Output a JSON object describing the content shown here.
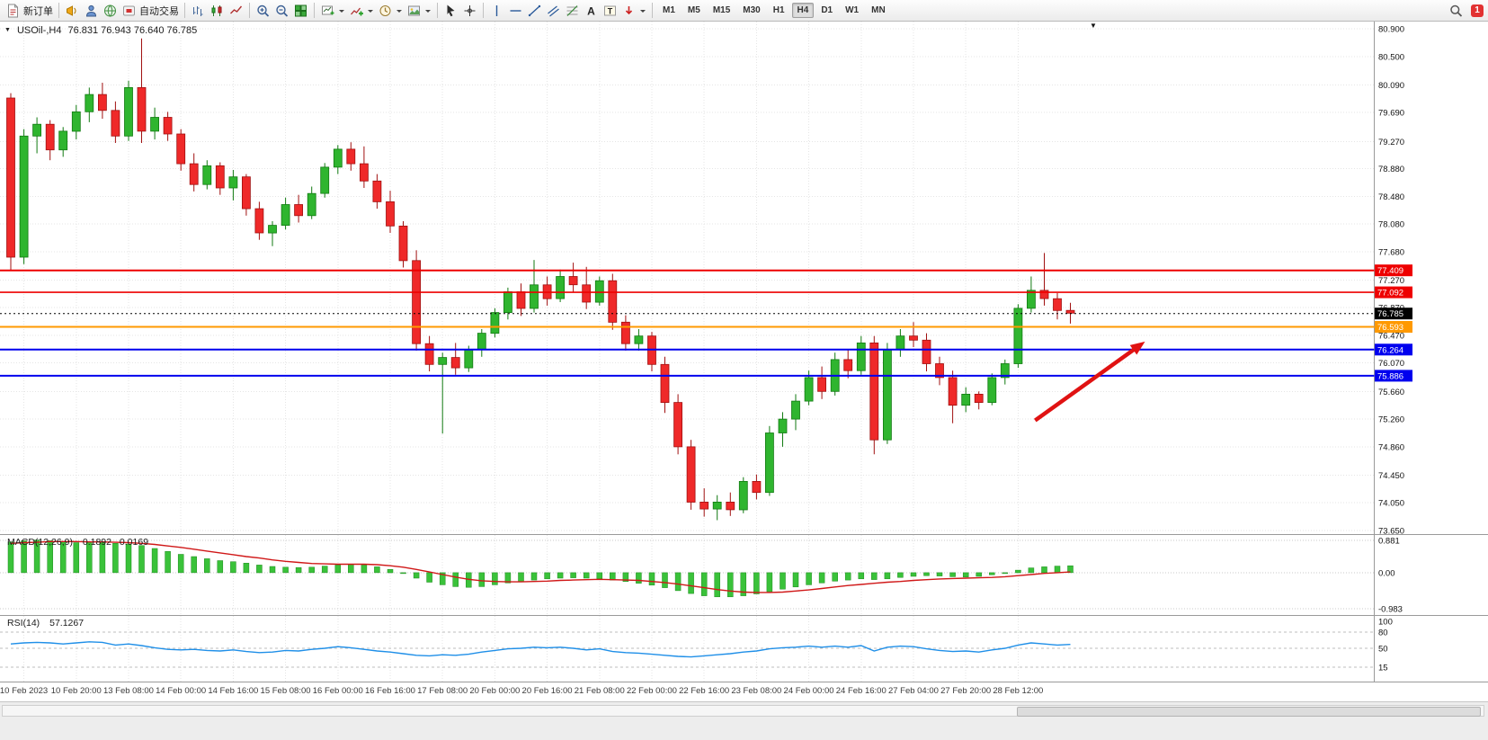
{
  "toolbar": {
    "timeframes": [
      "M1",
      "M5",
      "M15",
      "M30",
      "H1",
      "H4",
      "D1",
      "W1",
      "MN"
    ],
    "active_timeframe": "H4",
    "items": [
      {
        "t": "btn",
        "icon": "doc-new",
        "label": "新订单",
        "name": "new-order-button"
      },
      {
        "t": "sep"
      },
      {
        "t": "ico",
        "icon": "megaphone",
        "name": "alerts-button"
      },
      {
        "t": "ico",
        "icon": "person",
        "name": "accounts-button"
      },
      {
        "t": "ico",
        "icon": "globe",
        "name": "community-button"
      },
      {
        "t": "btn",
        "icon": "autotrade",
        "label": "自动交易",
        "name": "autotrading-button"
      },
      {
        "t": "sep"
      },
      {
        "t": "ico",
        "icon": "bar-chart",
        "name": "bar-chart-button"
      },
      {
        "t": "ico",
        "icon": "candle-chart",
        "name": "candlestick-chart-button"
      },
      {
        "t": "ico",
        "icon": "line-chart",
        "name": "line-chart-button"
      },
      {
        "t": "sep"
      },
      {
        "t": "ico",
        "icon": "zoom-in",
        "name": "zoom-in-button"
      },
      {
        "t": "ico",
        "icon": "zoom-out",
        "name": "zoom-out-button"
      },
      {
        "t": "ico",
        "icon": "tile-windows",
        "name": "tile-windows-button"
      },
      {
        "t": "sep"
      },
      {
        "t": "icoD",
        "icon": "new-chart",
        "name": "new-chart-button"
      },
      {
        "t": "icoD",
        "icon": "indicators",
        "name": "indicators-button"
      },
      {
        "t": "icoD",
        "icon": "periods",
        "name": "periods-button"
      },
      {
        "t": "icoD",
        "icon": "templates",
        "name": "templates-button"
      },
      {
        "t": "sep"
      },
      {
        "t": "ico",
        "icon": "cursor",
        "name": "cursor-button"
      },
      {
        "t": "ico",
        "icon": "crosshair",
        "name": "crosshair-button"
      },
      {
        "t": "sep"
      },
      {
        "t": "ico",
        "icon": "vline",
        "name": "vertical-line-button"
      },
      {
        "t": "ico",
        "icon": "hline",
        "name": "horizontal-line-button"
      },
      {
        "t": "ico",
        "icon": "trendline",
        "name": "trendline-button"
      },
      {
        "t": "ico",
        "icon": "channel",
        "name": "equidistant-channel-button"
      },
      {
        "t": "ico",
        "icon": "fibonacci",
        "name": "fibonacci-button"
      },
      {
        "t": "ico",
        "icon": "text",
        "name": "text-button"
      },
      {
        "t": "ico",
        "icon": "text-label",
        "name": "text-label-button"
      },
      {
        "t": "icoD",
        "icon": "arrows",
        "name": "arrows-button"
      },
      {
        "t": "sep"
      },
      {
        "t": "tf"
      },
      {
        "t": "spacer"
      },
      {
        "t": "ico",
        "icon": "search",
        "name": "search-button"
      },
      {
        "t": "badge",
        "label": "1",
        "name": "notification-badge"
      }
    ]
  },
  "chart_data": [
    {
      "type": "candlestick",
      "title": "USOil-,H4",
      "ohlc_text": "76.831 76.943 76.640 76.785",
      "up_color": "#2fb52f",
      "down_color": "#ef2929",
      "price_ticks": [
        "80.900",
        "80.500",
        "80.090",
        "79.690",
        "79.270",
        "78.880",
        "78.480",
        "78.080",
        "77.680",
        "77.270",
        "76.870",
        "76.470",
        "76.070",
        "75.660",
        "75.260",
        "74.860",
        "74.450",
        "74.050",
        "73.650"
      ],
      "time_labels": [
        "10 Feb 2023",
        "10 Feb 20:00",
        "13 Feb 08:00",
        "14 Feb 00:00",
        "14 Feb 16:00",
        "15 Feb 08:00",
        "16 Feb 00:00",
        "16 Feb 16:00",
        "17 Feb 08:00",
        "20 Feb 00:00",
        "20 Feb 16:00",
        "21 Feb 08:00",
        "22 Feb 00:00",
        "22 Feb 16:00",
        "23 Feb 08:00",
        "24 Feb 00:00",
        "24 Feb 16:00",
        "27 Feb 04:00",
        "27 Feb 20:00",
        "28 Feb 12:00"
      ],
      "candles": [
        [
          79.9,
          79.97,
          77.4,
          77.6
        ],
        [
          77.6,
          79.45,
          77.5,
          79.35
        ],
        [
          79.35,
          79.62,
          79.1,
          79.52
        ],
        [
          79.52,
          79.58,
          79.0,
          79.15
        ],
        [
          79.15,
          79.48,
          79.05,
          79.42
        ],
        [
          79.42,
          79.8,
          79.3,
          79.7
        ],
        [
          79.7,
          80.05,
          79.55,
          79.95
        ],
        [
          79.95,
          80.12,
          79.6,
          79.72
        ],
        [
          79.72,
          79.85,
          79.25,
          79.35
        ],
        [
          79.35,
          80.15,
          79.28,
          80.05
        ],
        [
          80.05,
          80.76,
          79.25,
          79.42
        ],
        [
          79.42,
          79.76,
          79.3,
          79.62
        ],
        [
          79.62,
          79.7,
          79.28,
          79.38
        ],
        [
          79.38,
          79.45,
          78.85,
          78.95
        ],
        [
          78.95,
          79.1,
          78.55,
          78.65
        ],
        [
          78.65,
          79.0,
          78.58,
          78.92
        ],
        [
          78.92,
          78.97,
          78.5,
          78.6
        ],
        [
          78.6,
          78.86,
          78.42,
          78.76
        ],
        [
          78.76,
          78.8,
          78.2,
          78.3
        ],
        [
          78.3,
          78.4,
          77.85,
          77.95
        ],
        [
          77.95,
          78.12,
          77.76,
          78.06
        ],
        [
          78.06,
          78.46,
          78.0,
          78.36
        ],
        [
          78.36,
          78.5,
          78.1,
          78.2
        ],
        [
          78.2,
          78.62,
          78.15,
          78.52
        ],
        [
          78.52,
          78.96,
          78.46,
          78.9
        ],
        [
          78.9,
          79.22,
          78.8,
          79.16
        ],
        [
          79.16,
          79.26,
          78.85,
          78.95
        ],
        [
          78.95,
          79.2,
          78.6,
          78.7
        ],
        [
          78.7,
          78.8,
          78.3,
          78.4
        ],
        [
          78.4,
          78.56,
          77.95,
          78.05
        ],
        [
          78.05,
          78.12,
          77.45,
          77.55
        ],
        [
          77.55,
          77.7,
          76.25,
          76.35
        ],
        [
          76.35,
          76.46,
          75.95,
          76.05
        ],
        [
          76.05,
          76.22,
          75.05,
          76.15
        ],
        [
          76.15,
          76.36,
          75.9,
          76.0
        ],
        [
          76.0,
          76.32,
          75.94,
          76.26
        ],
        [
          76.26,
          76.56,
          76.16,
          76.5
        ],
        [
          76.5,
          76.86,
          76.44,
          76.8
        ],
        [
          76.8,
          77.16,
          76.7,
          77.1
        ],
        [
          77.1,
          77.22,
          76.75,
          76.86
        ],
        [
          76.86,
          77.56,
          76.8,
          77.2
        ],
        [
          77.2,
          77.32,
          76.9,
          77.0
        ],
        [
          77.0,
          77.42,
          76.95,
          77.32
        ],
        [
          77.32,
          77.52,
          77.1,
          77.2
        ],
        [
          77.2,
          77.46,
          76.85,
          76.95
        ],
        [
          76.95,
          77.32,
          76.9,
          77.26
        ],
        [
          77.26,
          77.36,
          76.55,
          76.66
        ],
        [
          76.66,
          76.76,
          76.25,
          76.35
        ],
        [
          76.35,
          76.56,
          76.25,
          76.46
        ],
        [
          76.46,
          76.52,
          75.95,
          76.05
        ],
        [
          76.05,
          76.16,
          75.35,
          75.5
        ],
        [
          75.5,
          75.62,
          74.75,
          74.86
        ],
        [
          74.86,
          74.96,
          73.95,
          74.06
        ],
        [
          74.06,
          74.26,
          73.85,
          73.96
        ],
        [
          73.96,
          74.16,
          73.8,
          74.06
        ],
        [
          74.06,
          74.2,
          73.86,
          73.95
        ],
        [
          73.95,
          74.42,
          73.9,
          74.36
        ],
        [
          74.36,
          74.46,
          74.1,
          74.2
        ],
        [
          74.2,
          75.16,
          74.15,
          75.06
        ],
        [
          75.06,
          75.36,
          74.86,
          75.26
        ],
        [
          75.26,
          75.62,
          75.1,
          75.52
        ],
        [
          75.52,
          75.96,
          75.46,
          75.86
        ],
        [
          75.86,
          76.02,
          75.55,
          75.66
        ],
        [
          75.66,
          76.22,
          75.6,
          76.12
        ],
        [
          76.12,
          76.26,
          75.85,
          75.96
        ],
        [
          75.96,
          76.46,
          75.9,
          76.36
        ],
        [
          76.36,
          76.46,
          74.75,
          74.96
        ],
        [
          74.96,
          76.36,
          74.9,
          76.26
        ],
        [
          76.26,
          76.56,
          76.16,
          76.46
        ],
        [
          76.46,
          76.66,
          76.3,
          76.4
        ],
        [
          76.4,
          76.5,
          75.95,
          76.06
        ],
        [
          76.06,
          76.16,
          75.75,
          75.86
        ],
        [
          75.86,
          75.96,
          75.2,
          75.46
        ],
        [
          75.46,
          75.72,
          75.36,
          75.62
        ],
        [
          75.62,
          75.66,
          75.4,
          75.5
        ],
        [
          75.5,
          75.92,
          75.46,
          75.86
        ],
        [
          75.86,
          76.12,
          75.76,
          76.06
        ],
        [
          76.06,
          76.92,
          76.0,
          76.86
        ],
        [
          76.86,
          77.32,
          76.8,
          77.12
        ],
        [
          77.12,
          77.66,
          76.9,
          77.0
        ],
        [
          77.0,
          77.08,
          76.7,
          76.83
        ],
        [
          76.83,
          76.94,
          76.64,
          76.79
        ]
      ],
      "lines": [
        {
          "price": 77.409,
          "label": "77.409",
          "color": "#ee0000",
          "width": 2,
          "style": "solid",
          "name": "resistance-line-1"
        },
        {
          "price": 77.092,
          "label": "77.092",
          "color": "#ee0000",
          "width": 1.6,
          "style": "solid",
          "name": "resistance-line-2"
        },
        {
          "price": 76.593,
          "label": "76.593",
          "color": "#ff9900",
          "width": 2,
          "style": "solid",
          "name": "pivot-line"
        },
        {
          "price": 76.264,
          "label": "76.264",
          "color": "#0000ee",
          "width": 2,
          "style": "solid",
          "name": "support-line-1"
        },
        {
          "price": 75.886,
          "label": "75.886",
          "color": "#0000ee",
          "width": 2,
          "style": "solid",
          "name": "support-line-2"
        },
        {
          "price": 76.785,
          "label": "76.785",
          "color": "#000000",
          "width": 1,
          "style": "dotted",
          "name": "current-price-line"
        }
      ],
      "arrow": {
        "from_bar": 78.3,
        "from_price": 75.24,
        "to_bar": 86.7,
        "to_price": 76.38,
        "color": "#e01212"
      }
    },
    {
      "type": "bar+line",
      "label": "MACD(12,26,9)",
      "value_main": "0.1892",
      "value_signal": "0.0169",
      "axis_ticks": [
        "0.881",
        "0.00",
        "-0.983"
      ],
      "axis_values": [
        0.881,
        0,
        -0.983
      ],
      "hist_color": "#3ac23a",
      "signal_color": "#d01818",
      "histogram": [
        0.84,
        0.87,
        0.89,
        0.87,
        0.85,
        0.82,
        0.84,
        0.85,
        0.8,
        0.78,
        0.74,
        0.66,
        0.58,
        0.5,
        0.44,
        0.38,
        0.33,
        0.3,
        0.26,
        0.21,
        0.17,
        0.15,
        0.14,
        0.15,
        0.18,
        0.21,
        0.23,
        0.21,
        0.16,
        0.09,
        -0.02,
        -0.15,
        -0.26,
        -0.33,
        -0.38,
        -0.4,
        -0.38,
        -0.33,
        -0.28,
        -0.24,
        -0.2,
        -0.17,
        -0.15,
        -0.14,
        -0.15,
        -0.17,
        -0.2,
        -0.24,
        -0.29,
        -0.34,
        -0.41,
        -0.49,
        -0.57,
        -0.63,
        -0.66,
        -0.66,
        -0.63,
        -0.58,
        -0.52,
        -0.45,
        -0.39,
        -0.33,
        -0.28,
        -0.23,
        -0.2,
        -0.17,
        -0.19,
        -0.17,
        -0.13,
        -0.1,
        -0.08,
        -0.09,
        -0.11,
        -0.12,
        -0.1,
        -0.06,
        0.0,
        0.07,
        0.13,
        0.16,
        0.18,
        0.19
      ],
      "signal": [
        0.8,
        0.82,
        0.83,
        0.85,
        0.85,
        0.85,
        0.84,
        0.84,
        0.83,
        0.82,
        0.8,
        0.77,
        0.73,
        0.69,
        0.64,
        0.59,
        0.54,
        0.49,
        0.44,
        0.4,
        0.35,
        0.31,
        0.28,
        0.25,
        0.24,
        0.23,
        0.23,
        0.23,
        0.22,
        0.19,
        0.15,
        0.09,
        0.02,
        -0.05,
        -0.12,
        -0.18,
        -0.22,
        -0.24,
        -0.25,
        -0.25,
        -0.24,
        -0.23,
        -0.21,
        -0.2,
        -0.19,
        -0.18,
        -0.19,
        -0.2,
        -0.21,
        -0.24,
        -0.27,
        -0.31,
        -0.36,
        -0.41,
        -0.46,
        -0.5,
        -0.53,
        -0.54,
        -0.54,
        -0.53,
        -0.5,
        -0.47,
        -0.43,
        -0.39,
        -0.35,
        -0.32,
        -0.29,
        -0.26,
        -0.24,
        -0.21,
        -0.19,
        -0.17,
        -0.16,
        -0.15,
        -0.14,
        -0.13,
        -0.11,
        -0.08,
        -0.05,
        -0.02,
        0.0,
        0.02
      ]
    },
    {
      "type": "line",
      "label": "RSI(14)",
      "value": "57.1267",
      "axis_ticks": [
        "100",
        "80",
        "50",
        "15"
      ],
      "axis_values": [
        100,
        80,
        50,
        15
      ],
      "levels": [
        80,
        50,
        15
      ],
      "color": "#1f8fe8",
      "values": [
        58,
        60,
        61,
        60,
        58,
        60,
        62,
        61,
        56,
        58,
        55,
        51,
        48,
        47,
        48,
        46,
        45,
        47,
        44,
        42,
        43,
        46,
        45,
        48,
        50,
        53,
        51,
        48,
        45,
        43,
        40,
        37,
        36,
        38,
        37,
        39,
        43,
        46,
        49,
        50,
        52,
        51,
        52,
        50,
        47,
        49,
        44,
        42,
        41,
        39,
        37,
        35,
        34,
        36,
        38,
        40,
        43,
        45,
        49,
        51,
        52,
        54,
        52,
        54,
        52,
        55,
        45,
        52,
        54,
        53,
        49,
        46,
        44,
        45,
        43,
        47,
        50,
        56,
        60,
        58,
        56,
        57.1
      ]
    }
  ]
}
